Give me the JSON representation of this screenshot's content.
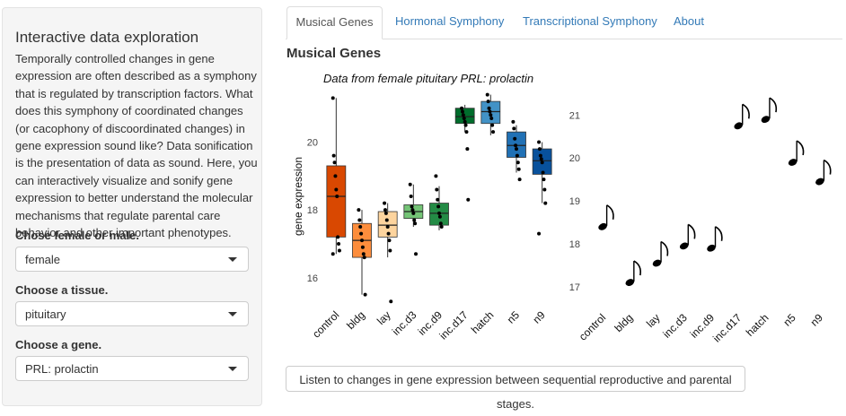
{
  "sidebar": {
    "title": "Interactive data exploration",
    "description": "Temporally controlled changes in gene expression are often described as a symphony that is regulated by transcription factors. What does this symphony of coordinated changes (or cacophony of discoordinated changes) in gene expression sound like? Data sonification is the presentation of data as sound. Here, you can interactively visualize and sonify gene expression to better understand the molecular mechanisms that regulate parental care behavior and other important phenotypes.",
    "sex_label": "Chose female or male.",
    "sex_value": "female",
    "tissue_label": "Choose a tissue.",
    "tissue_value": "pituitary",
    "gene_label": "Choose a gene.",
    "gene_value": "PRL: prolactin"
  },
  "tabs": [
    {
      "label": "Musical Genes",
      "active": true
    },
    {
      "label": "Hormonal Symphony",
      "active": false
    },
    {
      "label": "Transcriptional Symphony",
      "active": false
    },
    {
      "label": "About",
      "active": false
    }
  ],
  "main": {
    "title": "Musical Genes",
    "listen_button": "Listen to changes in gene expression between sequential reproductive and parental stages."
  },
  "chart_data": [
    {
      "type": "boxplot",
      "title": "Data from female pituitary PRL: prolactin",
      "xlabel": "",
      "ylabel": "gene expression",
      "ylim": [
        15.2,
        21.6
      ],
      "yticks": [
        16,
        18,
        20
      ],
      "grid": false,
      "categories": [
        "control",
        "bldg",
        "lay",
        "inc.d3",
        "inc.d9",
        "inc.d17",
        "hatch",
        "n5",
        "n9"
      ],
      "colors": [
        "#d94801",
        "#fd8d3c",
        "#fdd49e",
        "#74c476",
        "#238b45",
        "#006d2c",
        "#4292c6",
        "#2171b5",
        "#08519c"
      ],
      "boxes": [
        {
          "q1": 17.2,
          "median": 18.4,
          "q3": 19.3,
          "whisker_low": 16.7,
          "whisker_high": 21.3
        },
        {
          "q1": 16.6,
          "median": 17.1,
          "q3": 17.6,
          "whisker_low": 15.5,
          "whisker_high": 18.0
        },
        {
          "q1": 17.2,
          "median": 17.55,
          "q3": 17.95,
          "whisker_low": 16.6,
          "whisker_high": 18.2
        },
        {
          "q1": 17.75,
          "median": 17.95,
          "q3": 18.15,
          "whisker_low": 17.5,
          "whisker_high": 18.75
        },
        {
          "q1": 17.55,
          "median": 17.9,
          "q3": 18.2,
          "whisker_low": 17.4,
          "whisker_high": 18.7
        },
        {
          "q1": 20.55,
          "median": 20.75,
          "q3": 21.0,
          "whisker_low": 20.3,
          "whisker_high": 21.1
        },
        {
          "q1": 20.55,
          "median": 20.9,
          "q3": 21.2,
          "whisker_low": 20.2,
          "whisker_high": 21.4
        },
        {
          "q1": 19.55,
          "median": 19.9,
          "q3": 20.3,
          "whisker_low": 19.1,
          "whisker_high": 20.5
        },
        {
          "q1": 19.05,
          "median": 19.45,
          "q3": 19.8,
          "whisker_low": 18.2,
          "whisker_high": 20.0
        }
      ],
      "points": [
        [
          21.3,
          19.6,
          19.4,
          19.0,
          18.6,
          18.4,
          17.2,
          17.0,
          16.8,
          16.7
        ],
        [
          18.0,
          17.7,
          17.5,
          17.3,
          17.1,
          16.9,
          16.7,
          16.6,
          15.5
        ],
        [
          18.2,
          18.0,
          17.9,
          17.7,
          17.5,
          17.3,
          17.1,
          16.8,
          15.3
        ],
        [
          18.75,
          18.4,
          18.1,
          18.0,
          17.9,
          17.7,
          17.6,
          16.7
        ],
        [
          19.0,
          18.6,
          18.3,
          18.1,
          17.9,
          17.8,
          17.6,
          17.5
        ],
        [
          21.0,
          20.9,
          20.8,
          20.7,
          20.6,
          20.5,
          20.3,
          19.8,
          18.3
        ],
        [
          21.4,
          21.2,
          21.0,
          20.9,
          20.8,
          20.7,
          20.5,
          20.3
        ],
        [
          20.6,
          20.4,
          20.1,
          19.9,
          19.8,
          19.6,
          19.4,
          19.2,
          18.9
        ],
        [
          20.0,
          19.8,
          19.6,
          19.5,
          19.4,
          19.1,
          18.9,
          18.6,
          18.2,
          17.3
        ]
      ]
    },
    {
      "type": "scatter",
      "marker": "eighth-note",
      "xlabel": "",
      "ylabel": "",
      "ylim": [
        16.6,
        21.3
      ],
      "yticks": [
        17,
        18,
        19,
        20,
        21
      ],
      "grid": false,
      "categories": [
        "control",
        "bldg",
        "lay",
        "inc.d3",
        "inc.d9",
        "inc.d17",
        "hatch",
        "n5",
        "n9"
      ],
      "values": [
        18.4,
        17.1,
        17.55,
        17.95,
        17.9,
        20.75,
        20.9,
        19.9,
        19.45
      ]
    }
  ]
}
